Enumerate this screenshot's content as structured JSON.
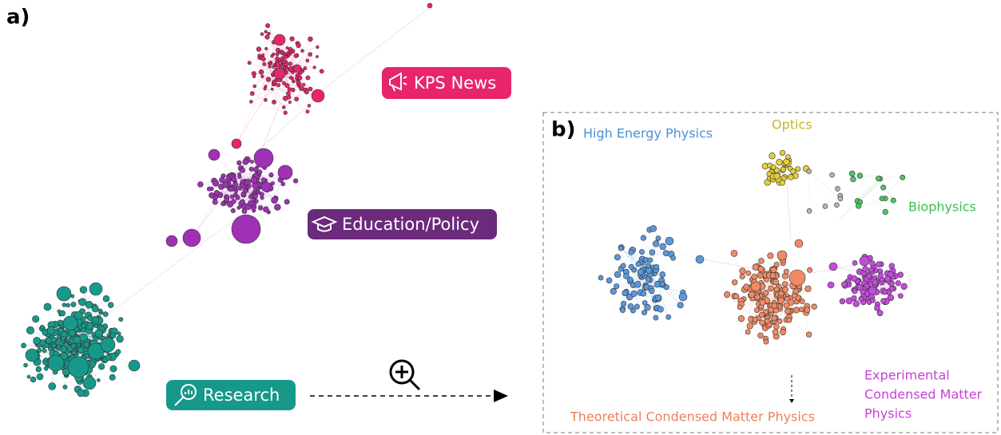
{
  "panel_a": {
    "label": "a)",
    "groups": [
      {
        "label": "KPS News"
      },
      {
        "label": "Education/Policy"
      },
      {
        "label": "Research"
      }
    ]
  },
  "panel_b": {
    "label": "b)",
    "clusters": [
      {
        "label": [
          "High Energy Physics"
        ]
      },
      {
        "label": [
          "Optics"
        ]
      },
      {
        "label": [
          "Biophysics"
        ]
      },
      {
        "label": [
          "Experimental",
          "Condensed Matter",
          "Physics"
        ]
      },
      {
        "label": [
          "Theoretical Condensed Matter Physics"
        ]
      }
    ]
  }
}
